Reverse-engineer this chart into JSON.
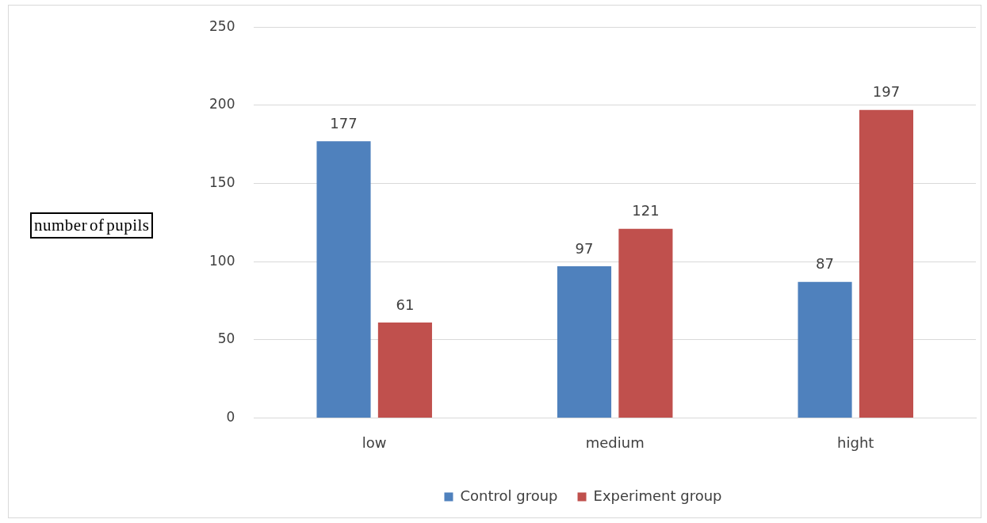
{
  "chart_data": {
    "type": "bar",
    "ylabel": "number of pupils",
    "categories": [
      "low",
      "medium",
      "hight"
    ],
    "series": [
      {
        "name": "Control group",
        "color": "#4f81bd",
        "values": [
          177,
          97,
          87
        ]
      },
      {
        "name": "Experiment group",
        "color": "#c0504d",
        "values": [
          61,
          121,
          197
        ]
      }
    ],
    "ylim": [
      0,
      250
    ],
    "yticks": [
      0,
      50,
      100,
      150,
      200,
      250
    ],
    "grid": "y",
    "legend": "bottom",
    "data_labels": true
  }
}
